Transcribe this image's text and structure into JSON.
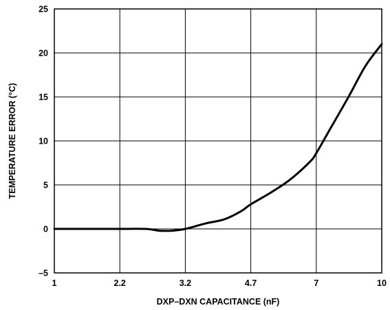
{
  "chart_data": {
    "type": "line",
    "xlabel": "DXP–DXN CAPACITANCE (nF)",
    "ylabel": "TEMPERATURE ERROR (°C)",
    "x_ticks": [
      "1",
      "2.2",
      "3.2",
      "4.7",
      "7",
      "10"
    ],
    "y_ticks": [
      "25",
      "20",
      "15",
      "10",
      "5",
      "0",
      "–5"
    ],
    "y_tick_values": [
      25,
      20,
      15,
      10,
      5,
      0,
      -5
    ],
    "ylim": [
      -5,
      25
    ],
    "grid": true,
    "x_scale": "categorical-positions",
    "series": [
      {
        "x_index": [
          0,
          1,
          1.4,
          1.6,
          1.8,
          2.0,
          2.3,
          2.6,
          2.85,
          3.0,
          3.3,
          3.6,
          3.9,
          4.0,
          4.2,
          4.5,
          4.75,
          5.0
        ],
        "values": [
          0,
          0,
          0,
          -0.2,
          -0.2,
          0,
          0.6,
          1.1,
          2.0,
          2.8,
          4.1,
          5.6,
          7.6,
          8.6,
          11.2,
          15.1,
          18.5,
          21
        ]
      }
    ]
  }
}
